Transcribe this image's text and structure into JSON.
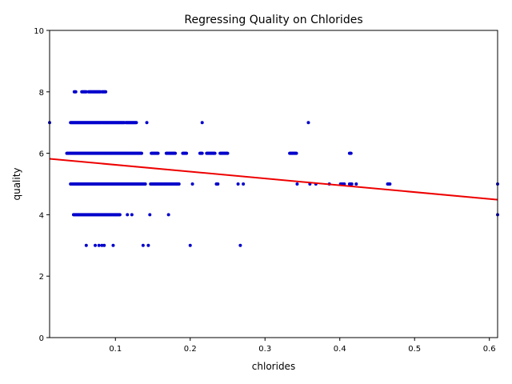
{
  "chart_data": {
    "type": "scatter",
    "title": "Regressing Quality on Chlorides",
    "xlabel": "chlorides",
    "ylabel": "quality",
    "xlim": [
      0.012,
      0.611
    ],
    "ylim": [
      0,
      10
    ],
    "x_ticks": [
      0.1,
      0.2,
      0.3,
      0.4,
      0.5,
      0.6
    ],
    "x_tick_labels": [
      "0.1",
      "0.2",
      "0.3",
      "0.4",
      "0.5",
      "0.6"
    ],
    "y_ticks": [
      0,
      2,
      4,
      6,
      8,
      10
    ],
    "y_tick_labels": [
      "0",
      "2",
      "4",
      "6",
      "8",
      "10"
    ],
    "grid": false,
    "legend": "none",
    "point_color": "#0000cc",
    "line_color": "#ee0000",
    "series": [
      {
        "kind": "points",
        "x_ranges": [
          [
            0.045,
            0.047,
            8
          ],
          [
            0.055,
            0.061,
            8
          ],
          [
            0.064,
            0.08,
            8
          ],
          [
            0.082,
            0.087,
            8
          ],
          [
            0.04,
            0.112,
            7
          ],
          [
            0.114,
            0.128,
            7
          ],
          [
            0.142,
            7
          ],
          [
            0.216,
            7
          ],
          [
            0.358,
            7
          ],
          [
            0.012,
            7
          ],
          [
            0.035,
            0.135,
            6
          ],
          [
            0.148,
            0.157,
            6
          ],
          [
            0.168,
            0.18,
            6
          ],
          [
            0.19,
            0.195,
            6
          ],
          [
            0.213,
            0.216,
            6
          ],
          [
            0.222,
            0.233,
            6
          ],
          [
            0.24,
            0.25,
            6
          ],
          [
            0.333,
            0.342,
            6
          ],
          [
            0.413,
            0.415,
            6
          ],
          [
            0.04,
            0.132,
            5
          ],
          [
            0.133,
            0.14,
            5
          ],
          [
            0.147,
            0.185,
            5
          ],
          [
            0.203,
            5
          ],
          [
            0.235,
            0.237,
            5
          ],
          [
            0.264,
            5
          ],
          [
            0.271,
            5
          ],
          [
            0.343,
            5
          ],
          [
            0.36,
            5
          ],
          [
            0.368,
            5
          ],
          [
            0.386,
            5
          ],
          [
            0.401,
            0.406,
            5
          ],
          [
            0.413,
            0.416,
            5
          ],
          [
            0.422,
            5
          ],
          [
            0.464,
            0.467,
            5
          ],
          [
            0.611,
            5
          ],
          [
            0.044,
            0.106,
            4
          ],
          [
            0.116,
            4
          ],
          [
            0.122,
            4
          ],
          [
            0.146,
            4
          ],
          [
            0.171,
            4
          ],
          [
            0.611,
            4
          ],
          [
            0.061,
            3
          ],
          [
            0.073,
            3
          ],
          [
            0.078,
            3
          ],
          [
            0.082,
            3
          ],
          [
            0.085,
            3
          ],
          [
            0.097,
            3
          ],
          [
            0.137,
            3
          ],
          [
            0.144,
            3
          ],
          [
            0.2,
            3
          ],
          [
            0.267,
            3
          ]
        ]
      },
      {
        "kind": "regression_line",
        "x": [
          0.012,
          0.611
        ],
        "y": [
          5.82,
          4.49
        ]
      }
    ]
  }
}
